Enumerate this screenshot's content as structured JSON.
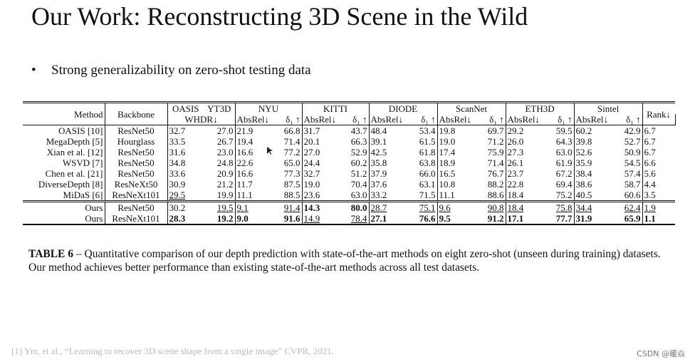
{
  "title": "Our Work: Reconstructing 3D Scene in the Wild",
  "bullets": [
    "Strong generalizability on zero-shot testing data"
  ],
  "table": {
    "header_top": [
      "Method",
      "Backbone",
      "OASIS",
      "YT3D",
      "NYU",
      "KITTI",
      "DIODE",
      "ScanNet",
      "ETH3D",
      "Sintel",
      "Rank↓"
    ],
    "header_sub": [
      "WHDR↓",
      "AbsRel↓",
      "δ₁ ↑",
      "AbsRel↓",
      "δ₁ ↑",
      "AbsRel↓",
      "δ₁ ↑",
      "AbsRel↓",
      "δ₁ ↑",
      "AbsRel↓",
      "δ₁ ↑",
      "AbsRel↓",
      "δ₁ ↑",
      "AbsRel↓",
      "δ₁ ↑"
    ],
    "rows": [
      [
        "OASIS [10]",
        "ResNet50",
        "32.7",
        "27.0",
        "21.9",
        "66.8",
        "31.7",
        "43.7",
        "48.4",
        "53.4",
        "19.8",
        "69.7",
        "29.2",
        "59.5",
        "60.2",
        "42.9",
        "6.7"
      ],
      [
        "MegaDepth [5]",
        "Hourglass",
        "33.5",
        "26.7",
        "19.4",
        "71.4",
        "20.1",
        "66.3",
        "39.1",
        "61.5",
        "19.0",
        "71.2",
        "26.0",
        "64.3",
        "39.8",
        "52.7",
        "6.7"
      ],
      [
        "Xian et al. [12]",
        "ResNet50",
        "31.6",
        "23.0",
        "16.6",
        "77.2",
        "27.0",
        "52.9",
        "42.5",
        "61.8",
        "17.4",
        "75.9",
        "27.3",
        "63.0",
        "52.6",
        "50.9",
        "6.7"
      ],
      [
        "WSVD [7]",
        "ResNet50",
        "34.8",
        "24.8",
        "22.6",
        "65.0",
        "24.4",
        "60.2",
        "35.8",
        "63.8",
        "18.9",
        "71.4",
        "26.1",
        "61.9",
        "35.9",
        "54.5",
        "6.6"
      ],
      [
        "Chen et al. [21]",
        "ResNet50",
        "33.6",
        "20.9",
        "16.6",
        "77.3",
        "32.7",
        "51.2",
        "37.9",
        "66.0",
        "16.5",
        "76.7",
        "23.7",
        "67.2",
        "38.4",
        "57.4",
        "5.6"
      ],
      [
        "DiverseDepth [8]",
        "ResNeXt50",
        "30.9",
        "21.2",
        "11.7",
        "87.5",
        "19.0",
        "70.4",
        "37.6",
        "63.1",
        "10.8",
        "88.2",
        "22.8",
        "69.4",
        "38.6",
        "58.7",
        "4.4"
      ],
      [
        "MiDaS [6]",
        "ResNeXt101",
        "29.5",
        "19.9",
        "11.1",
        "88.5",
        "23.6",
        "63.0",
        "33.2",
        "71.5",
        "11.1",
        "88.6",
        "18.4",
        "75.2",
        "40.5",
        "60.6",
        "3.5"
      ],
      [
        "Ours",
        "ResNet50",
        "30.2",
        "19.5",
        "9.1",
        "91.4",
        "14.3",
        "80.0",
        "28.7",
        "75.1",
        "9.6",
        "90.8",
        "18.4",
        "75.8",
        "34.4",
        "62.4",
        "1.9"
      ],
      [
        "Ours",
        "ResNeXt101",
        "28.3",
        "19.2",
        "9.0",
        "91.6",
        "14.9",
        "78.4",
        "27.1",
        "76.6",
        "9.5",
        "91.2",
        "17.1",
        "77.7",
        "31.9",
        "65.9",
        "1.1"
      ]
    ]
  },
  "caption": {
    "label": "TABLE 6",
    "text": " – Quantitative comparison of our depth prediction with state-of-the-art methods on eight zero-shot (unseen during training) datasets. Our method achieves better performance than existing state-of-the-art methods across all test datasets."
  },
  "footnote": "[1] Yin, et al., “Learning to recover 3D scene shape from a single image” CVPR, 2021.",
  "watermark": "CSDN @暖焱"
}
